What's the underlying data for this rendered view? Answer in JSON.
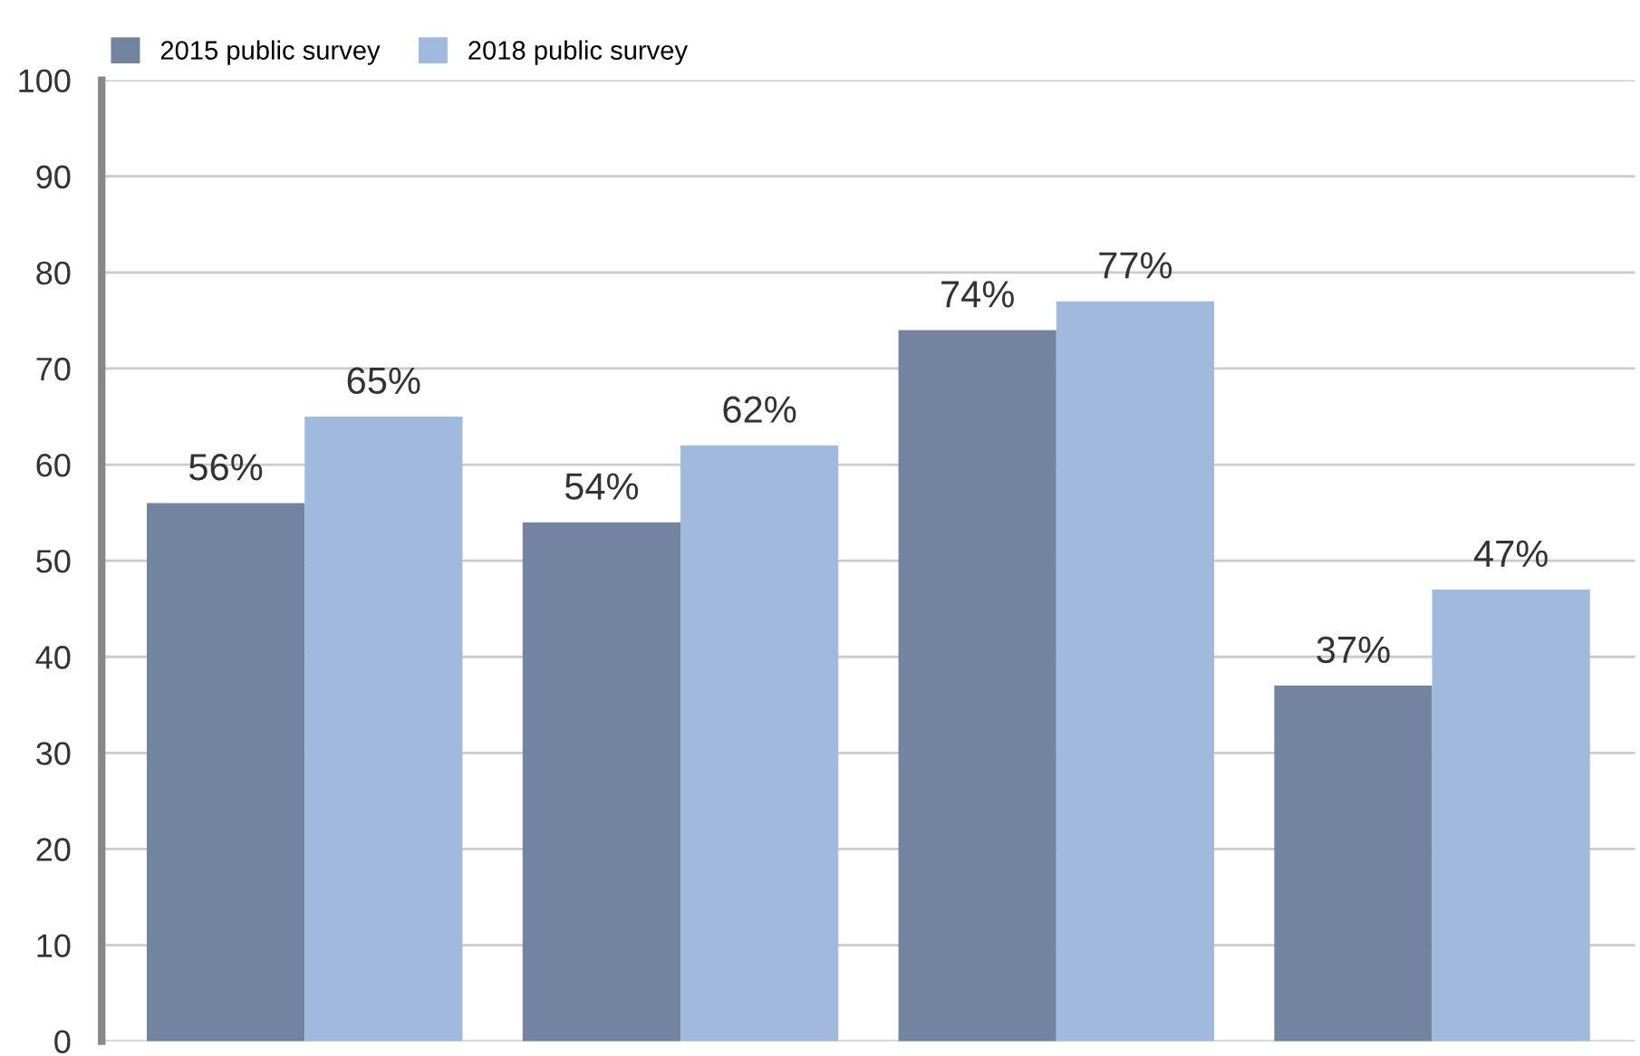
{
  "chart_data": {
    "type": "bar",
    "categories": [
      null,
      null,
      null,
      null
    ],
    "series": [
      {
        "name": "2015 public survey",
        "color": "#7384a0",
        "values": [
          56,
          54,
          74,
          37
        ],
        "value_labels": [
          "56%",
          "54%",
          "74%",
          "37%"
        ]
      },
      {
        "name": "2018 public survey",
        "color": "#a0b9dc",
        "values": [
          65,
          62,
          77,
          47
        ],
        "value_labels": [
          "65%",
          "62%",
          "77%",
          "47%"
        ]
      }
    ],
    "ylim": [
      0,
      100
    ],
    "yticks": [
      0,
      10,
      20,
      30,
      40,
      50,
      60,
      70,
      80,
      90,
      100
    ],
    "grid": "y",
    "legend": "top left"
  }
}
